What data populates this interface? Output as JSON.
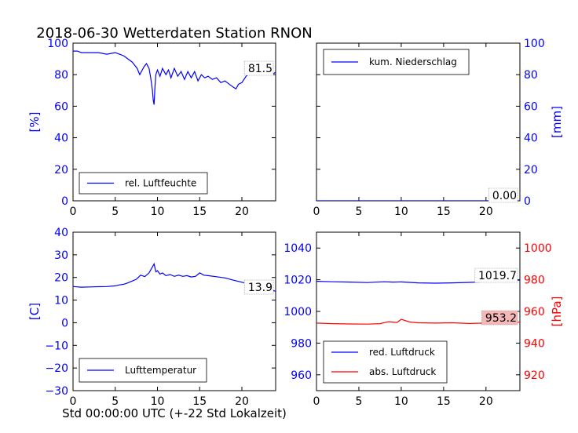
{
  "title": "2018-06-30 Wetterdaten Station RNON",
  "footer_xlabel": "Std 00:00:00 UTC (+-22 Std Lokalzeit)",
  "colors": {
    "primary": "#0000ff",
    "secondary": "#ff0000",
    "axis": "#000000",
    "value_box_red": "#f4b8b8"
  },
  "chart_data": [
    {
      "type": "line",
      "panel": "humidity",
      "ylabel": "[%]",
      "ylabel_color": "#0000ff",
      "xlim": [
        0,
        24
      ],
      "ylim": [
        0,
        100
      ],
      "xticks": [
        "0",
        "5",
        "10",
        "15",
        "20"
      ],
      "yticks": [
        "0",
        "20",
        "40",
        "60",
        "80",
        "100"
      ],
      "legend_position": "lower-center",
      "current_value": "81.5",
      "series": [
        {
          "name": "rel. Luftfeuchte",
          "color": "#0000ff",
          "x": [
            0,
            0.5,
            1,
            2,
            3,
            4,
            5,
            5.5,
            6,
            6.5,
            7,
            7.3,
            7.6,
            7.9,
            8.1,
            8.4,
            8.7,
            9,
            9.2,
            9.4,
            9.5,
            9.6,
            9.7,
            9.8,
            10,
            10.3,
            10.6,
            11,
            11.3,
            11.6,
            12,
            12.4,
            12.8,
            13.2,
            13.6,
            14,
            14.4,
            14.8,
            15.2,
            15.6,
            16,
            16.5,
            17,
            17.5,
            18,
            18.5,
            19,
            19.3,
            19.6,
            20,
            20.5,
            21,
            21.5,
            22,
            22.5,
            23,
            23.5,
            24
          ],
          "y": [
            95,
            95,
            94,
            94,
            94,
            93,
            94,
            93,
            92,
            90,
            88,
            86,
            84,
            80,
            82,
            85,
            87,
            84,
            78,
            70,
            64,
            61,
            72,
            80,
            83,
            79,
            84,
            80,
            83,
            78,
            84,
            79,
            82,
            77,
            82,
            78,
            82,
            76,
            80,
            78,
            79,
            77,
            78,
            75,
            76,
            74,
            72,
            71,
            74,
            75,
            79,
            81,
            80,
            83,
            81,
            82,
            80,
            81.5
          ]
        }
      ]
    },
    {
      "type": "line",
      "panel": "precipitation",
      "ylabel": "[mm]",
      "ylabel_color": "#0000ff",
      "xlim": [
        0,
        24
      ],
      "ylim": [
        0,
        100
      ],
      "xticks": [
        "0",
        "5",
        "10",
        "15",
        "20"
      ],
      "yticks": [
        "0",
        "20",
        "40",
        "60",
        "80",
        "100"
      ],
      "legend_position": "upper-left",
      "current_value": "0.00",
      "series": [
        {
          "name": "kum. Niederschlag",
          "color": "#0000ff",
          "x": [
            0,
            24
          ],
          "y": [
            0,
            0
          ]
        }
      ]
    },
    {
      "type": "line",
      "panel": "temperature",
      "ylabel": "[C]",
      "ylabel_color": "#0000ff",
      "xlabel": "Std 00:00:00 UTC (+-22 Std Lokalzeit)",
      "xlim": [
        0,
        24
      ],
      "ylim": [
        -30,
        40
      ],
      "xticks": [
        "0",
        "5",
        "10",
        "15",
        "20"
      ],
      "yticks": [
        "−30",
        "−20",
        "−10",
        "0",
        "10",
        "20",
        "30",
        "40"
      ],
      "legend_position": "lower-center",
      "current_value": "13.9",
      "series": [
        {
          "name": "Lufttemperatur",
          "color": "#0000ff",
          "x": [
            0,
            1,
            2,
            3,
            4,
            5,
            5.5,
            6,
            6.5,
            7,
            7.5,
            8,
            8.5,
            9,
            9.3,
            9.6,
            9.8,
            10,
            10.3,
            10.6,
            11,
            11.5,
            12,
            12.5,
            13,
            13.5,
            14,
            14.5,
            15,
            15.5,
            16,
            17,
            18,
            19,
            20,
            21,
            22,
            23,
            24
          ],
          "y": [
            16.0,
            15.7,
            15.8,
            15.9,
            16.0,
            16.3,
            16.7,
            17.0,
            17.6,
            18.4,
            19.2,
            21.0,
            20.4,
            22.0,
            24.0,
            26.0,
            22.5,
            23.0,
            21.5,
            22.0,
            20.8,
            21.3,
            20.5,
            21.0,
            20.5,
            20.8,
            20.2,
            20.5,
            22.0,
            21.0,
            20.8,
            20.3,
            19.8,
            18.8,
            17.9,
            17.0,
            15.8,
            14.8,
            13.9
          ]
        }
      ]
    },
    {
      "type": "line",
      "panel": "pressure",
      "ylabel": "[hPa]",
      "ylabel_color": "#ff0000",
      "xlim": [
        0,
        24
      ],
      "ylim_left": [
        950,
        1050
      ],
      "ylim_right": [
        910,
        1010
      ],
      "xticks": [
        "0",
        "5",
        "10",
        "15",
        "20"
      ],
      "yticks_left": [
        "960",
        "980",
        "1000",
        "1020",
        "1040"
      ],
      "yticks_right": [
        "920",
        "940",
        "960",
        "980",
        "1000"
      ],
      "legend_position": "lower-left",
      "current_values": [
        "1019.7",
        "953.2"
      ],
      "series": [
        {
          "name": "red. Luftdruck",
          "color": "#0000ff",
          "axis": "left",
          "x": [
            0,
            2,
            4,
            6,
            8,
            9,
            10,
            12,
            14,
            16,
            18,
            20,
            22,
            24
          ],
          "y": [
            1019.0,
            1018.7,
            1018.5,
            1018.2,
            1018.7,
            1018.5,
            1018.6,
            1018.0,
            1017.8,
            1018.0,
            1018.3,
            1018.7,
            1019.2,
            1019.7
          ]
        },
        {
          "name": "abs. Luftdruck",
          "color": "#ff0000",
          "axis": "right",
          "x": [
            0,
            2,
            4,
            6,
            7.5,
            8.5,
            9.5,
            10,
            11,
            12,
            14,
            16,
            18,
            20,
            22,
            24
          ],
          "y": [
            952.6,
            952.3,
            952.1,
            952.0,
            952.3,
            953.5,
            953.0,
            955.0,
            953.3,
            952.8,
            952.6,
            952.8,
            952.4,
            952.6,
            953.0,
            953.2
          ]
        }
      ]
    }
  ]
}
